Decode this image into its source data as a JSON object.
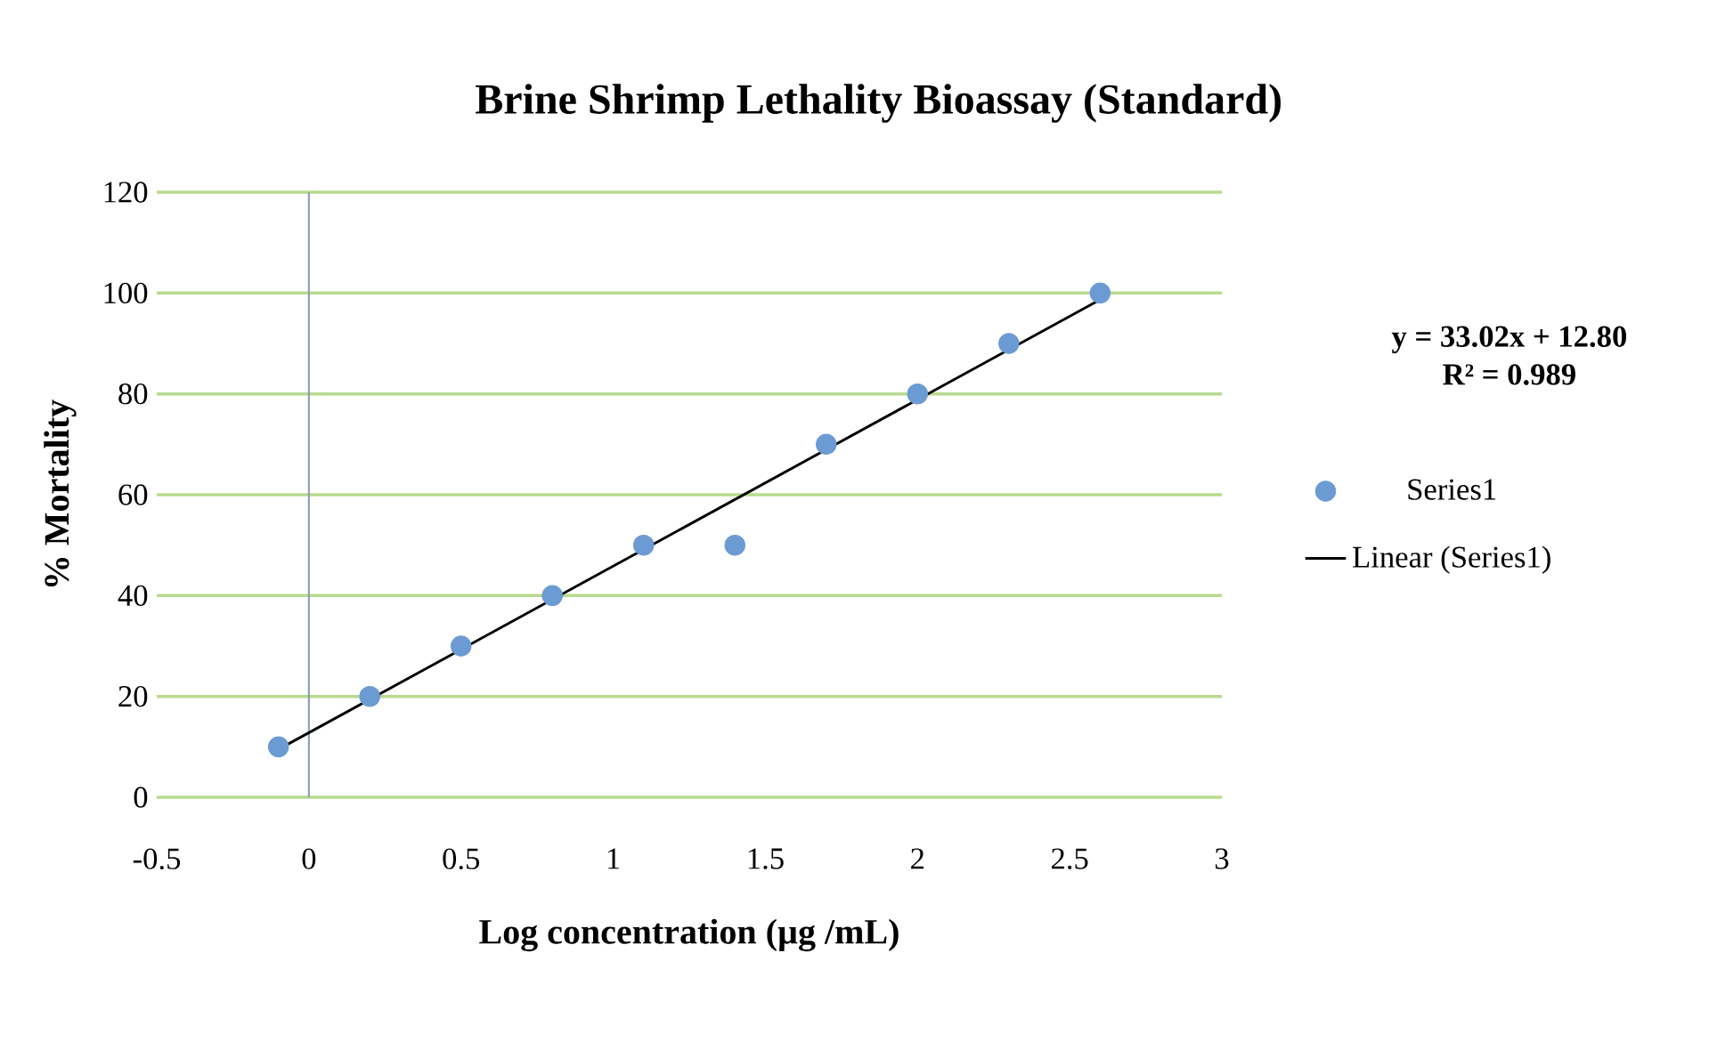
{
  "chart_data": {
    "type": "scatter",
    "title": "Brine Shrimp Lethality Bioassay (Standard)",
    "xlabel": "Log concentration (µg /mL)",
    "ylabel": "% Mortality",
    "annotations": [
      "y = 33.02x + 12.80",
      "R² = 0.989"
    ],
    "series": [
      {
        "name": "Series1",
        "color": "#6b9bd2",
        "x": [
          -0.1,
          0.2,
          0.5,
          0.8,
          1.1,
          1.4,
          1.7,
          2.0,
          2.3,
          2.6
        ],
        "values": [
          10,
          20,
          30,
          40,
          50,
          50,
          70,
          80,
          90,
          100
        ],
        "marker": "circle"
      },
      {
        "name": "Linear (Series1)",
        "type": "line",
        "color": "#000000",
        "x": [
          -0.1,
          2.6
        ],
        "values": [
          9.5,
          98.7
        ],
        "marker": "none",
        "line_style": "solid"
      }
    ],
    "xlim": [
      -0.5,
      3
    ],
    "ylim": [
      0,
      120
    ],
    "xticks": [
      -0.5,
      0,
      0.5,
      1,
      1.5,
      2,
      2.5,
      3
    ],
    "yticks": [
      0,
      20,
      40,
      60,
      80,
      100,
      120
    ],
    "ref_lines": [
      {
        "axis": "x",
        "value": 0,
        "color": "#8c9fb5"
      }
    ],
    "grid": "y",
    "legend": "right"
  }
}
